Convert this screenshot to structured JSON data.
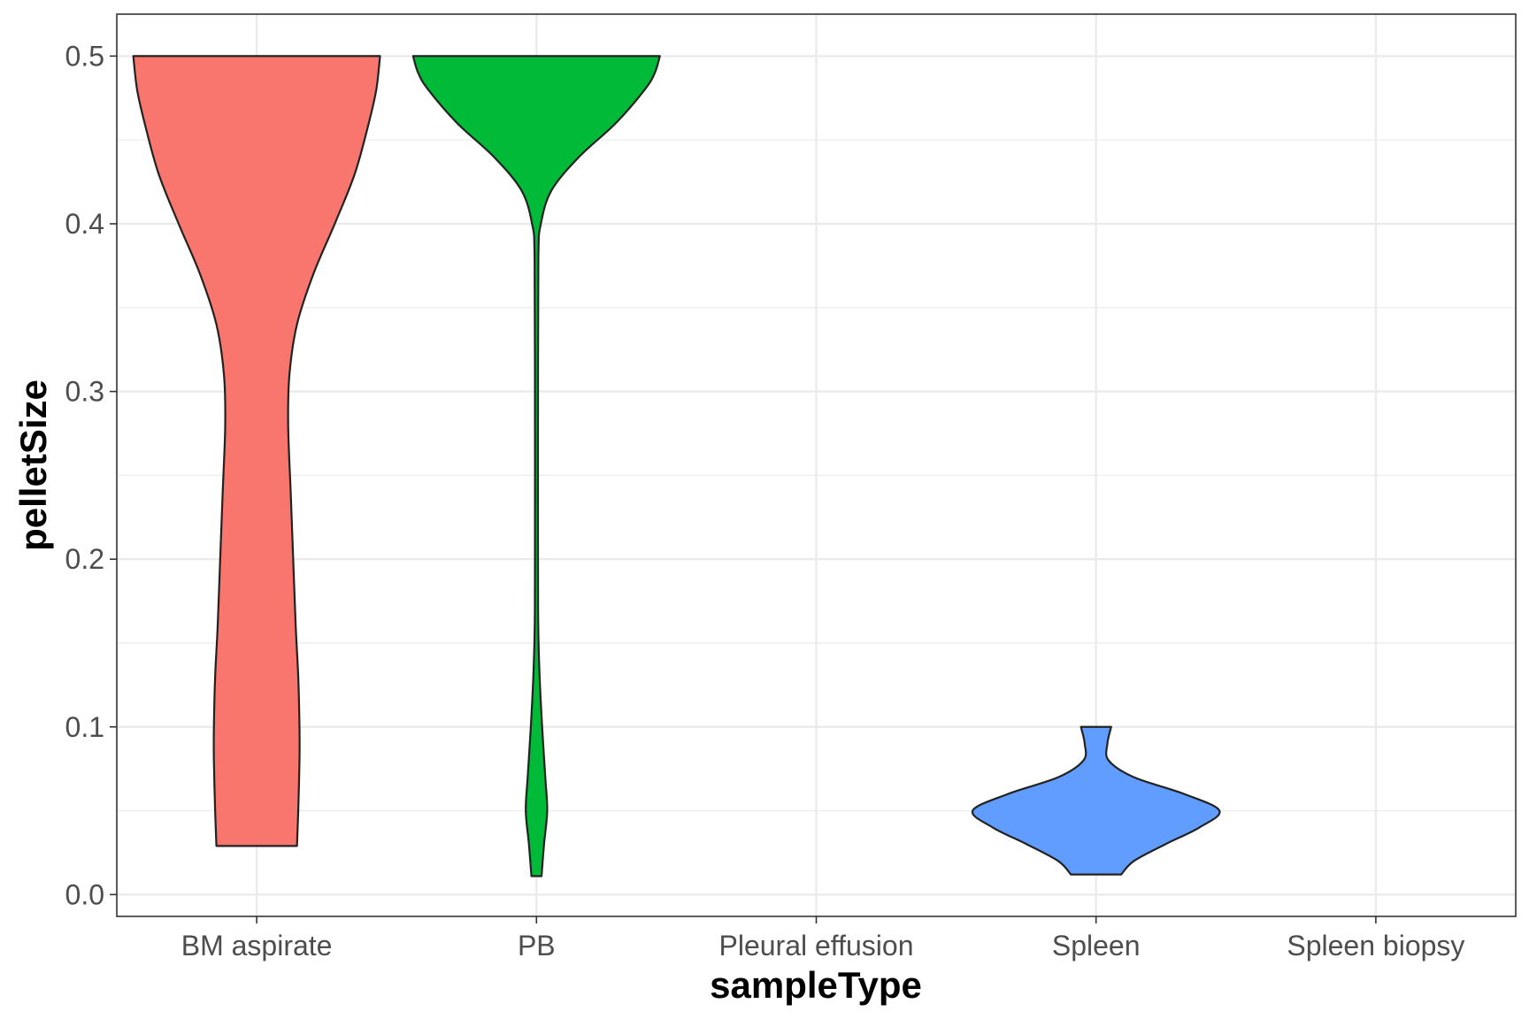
{
  "chart_data": {
    "type": "violin",
    "xlabel": "sampleType",
    "ylabel": "pelletSize",
    "categories": [
      "BM aspirate",
      "PB",
      "Pleural effusion",
      "Spleen",
      "Spleen biopsy"
    ],
    "ylim": [
      -0.013,
      0.525
    ],
    "y_ticks": [
      "0.0",
      "0.1",
      "0.2",
      "0.3",
      "0.4",
      "0.5"
    ],
    "grid": true,
    "legend": "none",
    "series": [
      {
        "category": "BM aspirate",
        "color": "#F8766D",
        "range": [
          0.029,
          0.5
        ],
        "density_profile": [
          [
            0.029,
            0.32
          ],
          [
            0.05,
            0.33
          ],
          [
            0.08,
            0.34
          ],
          [
            0.1,
            0.34
          ],
          [
            0.13,
            0.33
          ],
          [
            0.16,
            0.31
          ],
          [
            0.2,
            0.29
          ],
          [
            0.24,
            0.27
          ],
          [
            0.28,
            0.25
          ],
          [
            0.31,
            0.26
          ],
          [
            0.34,
            0.32
          ],
          [
            0.37,
            0.45
          ],
          [
            0.4,
            0.62
          ],
          [
            0.43,
            0.78
          ],
          [
            0.46,
            0.89
          ],
          [
            0.48,
            0.95
          ],
          [
            0.5,
            0.98
          ]
        ]
      },
      {
        "category": "PB",
        "color": "#00BA38",
        "range": [
          0.011,
          0.5
        ],
        "density_profile": [
          [
            0.011,
            0.04
          ],
          [
            0.03,
            0.06
          ],
          [
            0.05,
            0.085
          ],
          [
            0.07,
            0.07
          ],
          [
            0.1,
            0.045
          ],
          [
            0.13,
            0.025
          ],
          [
            0.16,
            0.014
          ],
          [
            0.2,
            0.012
          ],
          [
            0.3,
            0.012
          ],
          [
            0.38,
            0.015
          ],
          [
            0.4,
            0.035
          ],
          [
            0.42,
            0.12
          ],
          [
            0.44,
            0.34
          ],
          [
            0.46,
            0.63
          ],
          [
            0.48,
            0.86
          ],
          [
            0.49,
            0.94
          ],
          [
            0.5,
            0.98
          ]
        ]
      },
      {
        "category": "Spleen",
        "color": "#619CFF",
        "range": [
          0.012,
          0.1
        ],
        "density_profile": [
          [
            0.012,
            0.2
          ],
          [
            0.02,
            0.3
          ],
          [
            0.03,
            0.55
          ],
          [
            0.04,
            0.82
          ],
          [
            0.05,
            0.98
          ],
          [
            0.06,
            0.7
          ],
          [
            0.07,
            0.3
          ],
          [
            0.08,
            0.1
          ],
          [
            0.09,
            0.09
          ],
          [
            0.1,
            0.12
          ]
        ]
      }
    ]
  }
}
